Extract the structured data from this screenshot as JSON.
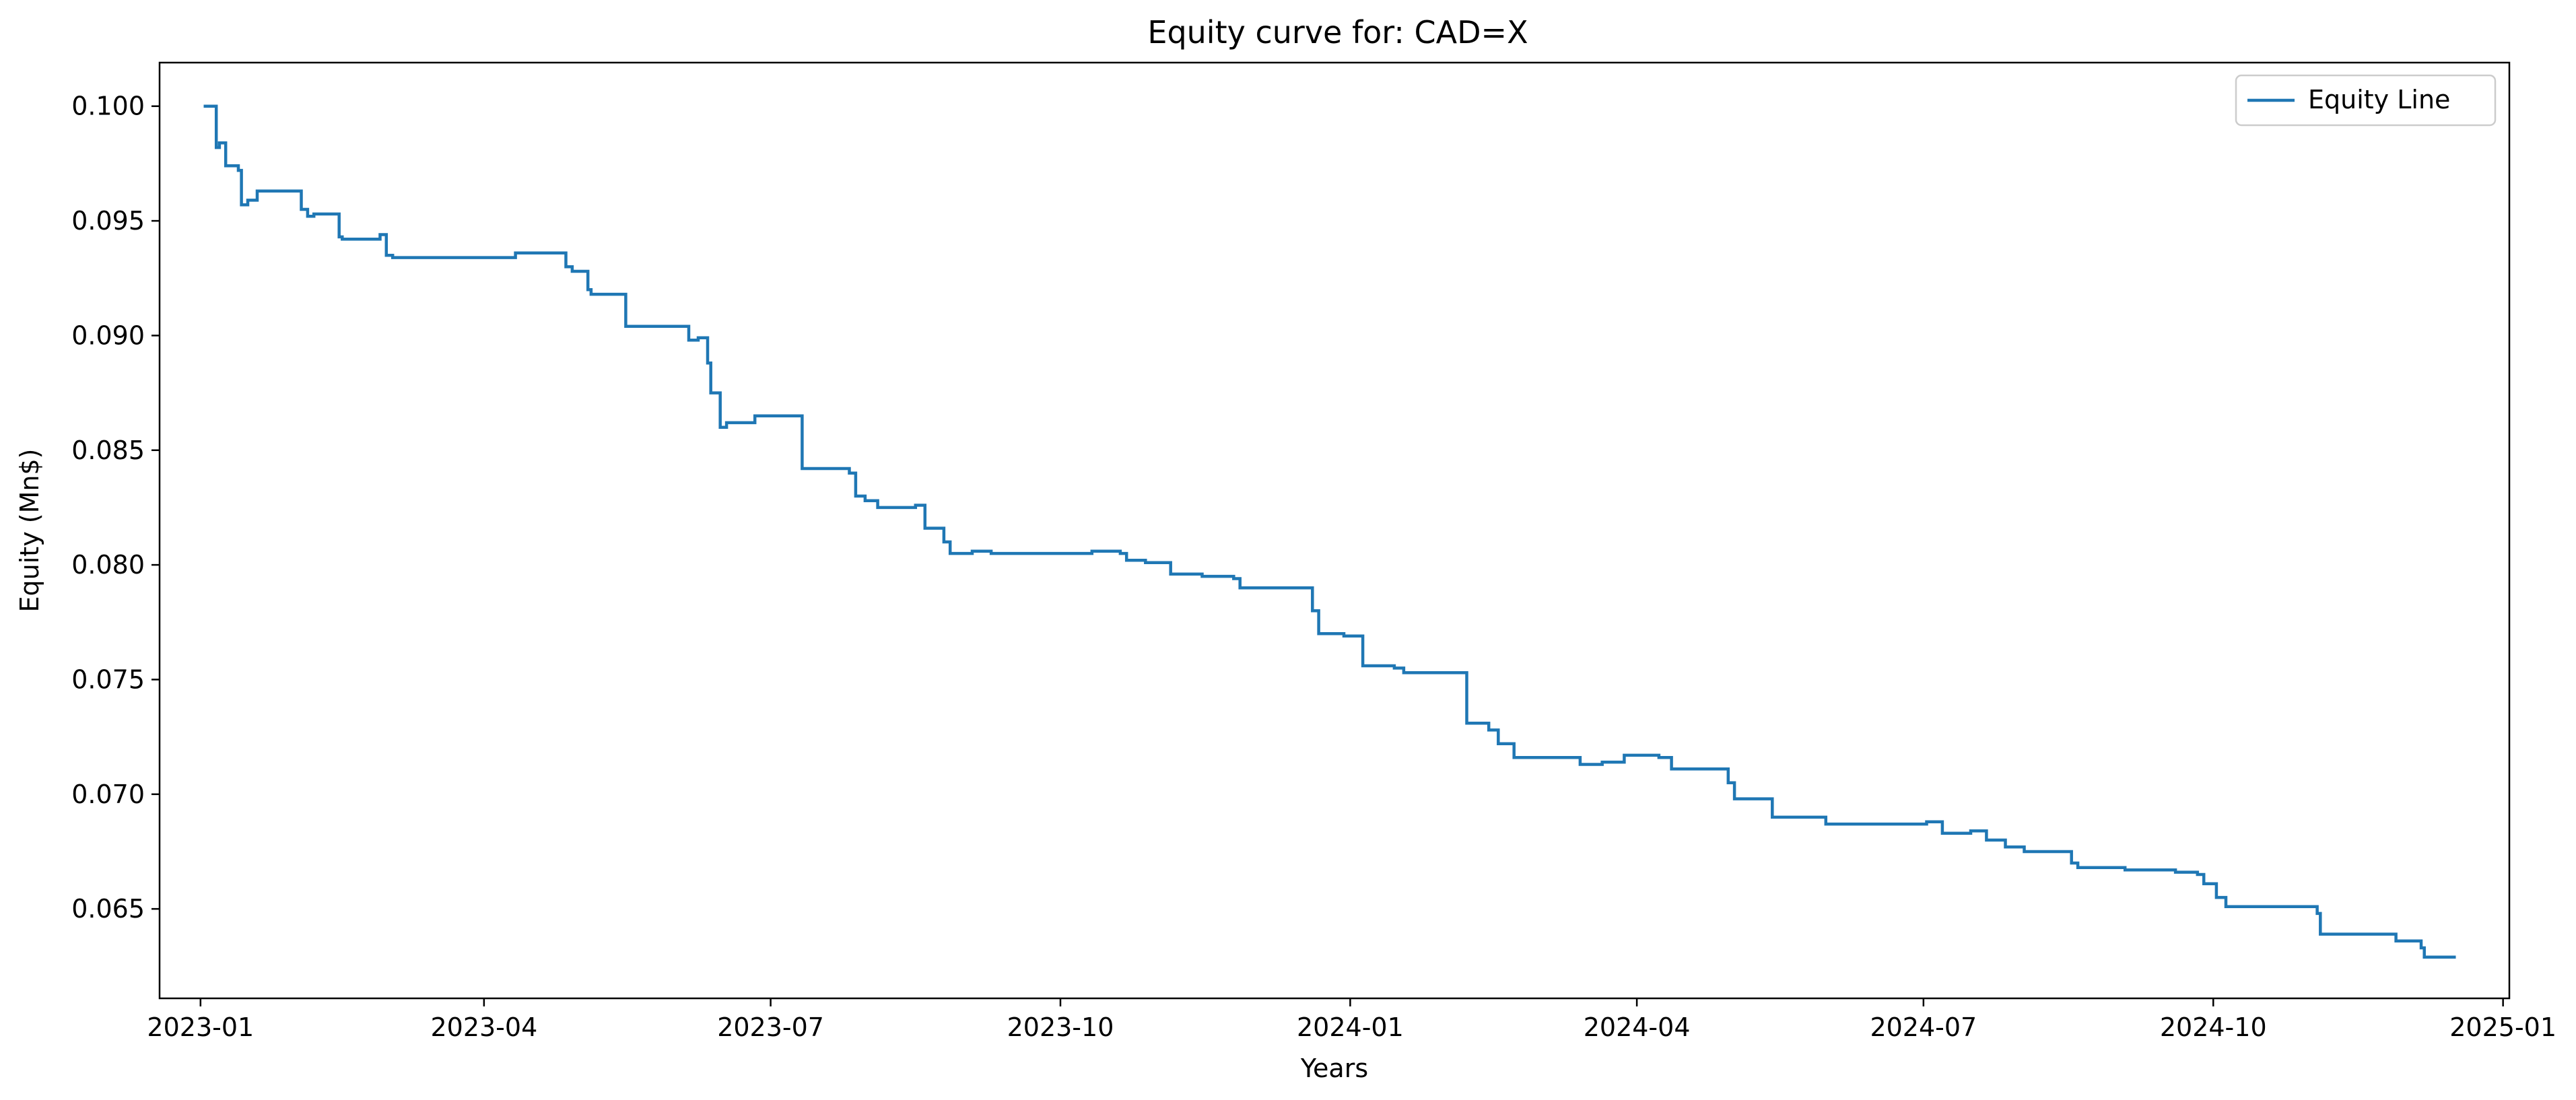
{
  "chart_data": {
    "type": "line",
    "title": "Equity curve for: CAD=X",
    "xlabel": "Years",
    "ylabel": "Equity (Mn$)",
    "x_axis_type": "date",
    "xlim": [
      "2022-12-19",
      "2025-01-03"
    ],
    "ylim": [
      0.0611,
      0.1019
    ],
    "x_ticks": [
      "2023-01",
      "2023-04",
      "2023-07",
      "2023-10",
      "2024-01",
      "2024-04",
      "2024-07",
      "2024-10",
      "2025-01"
    ],
    "y_ticks": [
      0.065,
      0.07,
      0.075,
      0.08,
      0.085,
      0.09,
      0.095,
      0.1
    ],
    "y_tick_labels": [
      "0.065",
      "0.070",
      "0.075",
      "0.080",
      "0.085",
      "0.090",
      "0.095",
      "0.100"
    ],
    "grid": false,
    "legend_position": "top-right",
    "colors": {
      "series": "#1f77b4",
      "axes": "#000000"
    },
    "series": [
      {
        "name": "Equity Line",
        "step": "post",
        "points": [
          [
            "2023-01-02",
            0.1
          ],
          [
            "2023-01-06",
            0.0982
          ],
          [
            "2023-01-07",
            0.0984
          ],
          [
            "2023-01-09",
            0.0974
          ],
          [
            "2023-01-13",
            0.0972
          ],
          [
            "2023-01-14",
            0.0957
          ],
          [
            "2023-01-16",
            0.0959
          ],
          [
            "2023-01-19",
            0.0963
          ],
          [
            "2023-02-02",
            0.0955
          ],
          [
            "2023-02-04",
            0.0952
          ],
          [
            "2023-02-06",
            0.0953
          ],
          [
            "2023-02-14",
            0.0943
          ],
          [
            "2023-02-15",
            0.0942
          ],
          [
            "2023-02-27",
            0.0944
          ],
          [
            "2023-03-01",
            0.0935
          ],
          [
            "2023-03-03",
            0.0934
          ],
          [
            "2023-04-11",
            0.0936
          ],
          [
            "2023-04-27",
            0.093
          ],
          [
            "2023-04-29",
            0.0928
          ],
          [
            "2023-05-04",
            0.092
          ],
          [
            "2023-05-05",
            0.0918
          ],
          [
            "2023-05-16",
            0.0904
          ],
          [
            "2023-06-05",
            0.0898
          ],
          [
            "2023-06-08",
            0.0899
          ],
          [
            "2023-06-11",
            0.0888
          ],
          [
            "2023-06-12",
            0.0875
          ],
          [
            "2023-06-15",
            0.086
          ],
          [
            "2023-06-17",
            0.0862
          ],
          [
            "2023-06-26",
            0.0865
          ],
          [
            "2023-07-11",
            0.0842
          ],
          [
            "2023-07-26",
            0.084
          ],
          [
            "2023-07-28",
            0.083
          ],
          [
            "2023-07-31",
            0.0828
          ],
          [
            "2023-08-04",
            0.0825
          ],
          [
            "2023-08-16",
            0.0826
          ],
          [
            "2023-08-19",
            0.0816
          ],
          [
            "2023-08-23",
            0.0816
          ],
          [
            "2023-08-25",
            0.081
          ],
          [
            "2023-08-27",
            0.0805
          ],
          [
            "2023-09-03",
            0.0806
          ],
          [
            "2023-09-09",
            0.0805
          ],
          [
            "2023-10-11",
            0.0806
          ],
          [
            "2023-10-20",
            0.0805
          ],
          [
            "2023-10-22",
            0.0802
          ],
          [
            "2023-10-28",
            0.0801
          ],
          [
            "2023-11-05",
            0.0796
          ],
          [
            "2023-11-15",
            0.0795
          ],
          [
            "2023-11-25",
            0.0794
          ],
          [
            "2023-11-27",
            0.079
          ],
          [
            "2023-12-19",
            0.079
          ],
          [
            "2023-12-20",
            0.078
          ],
          [
            "2023-12-22",
            0.077
          ],
          [
            "2023-12-30",
            0.0769
          ],
          [
            "2024-01-05",
            0.0756
          ],
          [
            "2024-01-15",
            0.0755
          ],
          [
            "2024-01-18",
            0.0753
          ],
          [
            "2024-02-07",
            0.0731
          ],
          [
            "2024-02-14",
            0.0728
          ],
          [
            "2024-02-17",
            0.0722
          ],
          [
            "2024-02-22",
            0.0716
          ],
          [
            "2024-02-26",
            0.0716
          ],
          [
            "2024-03-14",
            0.0713
          ],
          [
            "2024-03-21",
            0.0714
          ],
          [
            "2024-03-28",
            0.0717
          ],
          [
            "2024-04-08",
            0.0716
          ],
          [
            "2024-04-12",
            0.0711
          ],
          [
            "2024-04-22",
            0.0711
          ],
          [
            "2024-04-30",
            0.0705
          ],
          [
            "2024-05-02",
            0.0698
          ],
          [
            "2024-05-11",
            0.0698
          ],
          [
            "2024-05-14",
            0.069
          ],
          [
            "2024-05-27",
            0.069
          ],
          [
            "2024-05-31",
            0.0687
          ],
          [
            "2024-06-30",
            0.0687
          ],
          [
            "2024-07-02",
            0.0688
          ],
          [
            "2024-07-07",
            0.0683
          ],
          [
            "2024-07-16",
            0.0684
          ],
          [
            "2024-07-21",
            0.068
          ],
          [
            "2024-07-27",
            0.0677
          ],
          [
            "2024-08-02",
            0.0675
          ],
          [
            "2024-08-15",
            0.0675
          ],
          [
            "2024-08-17",
            0.067
          ],
          [
            "2024-08-19",
            0.0668
          ],
          [
            "2024-09-03",
            0.0667
          ],
          [
            "2024-09-13",
            0.0667
          ],
          [
            "2024-09-19",
            0.0666
          ],
          [
            "2024-09-26",
            0.0665
          ],
          [
            "2024-09-28",
            0.0661
          ],
          [
            "2024-10-02",
            0.0655
          ],
          [
            "2024-10-05",
            0.0651
          ],
          [
            "2024-11-02",
            0.0651
          ],
          [
            "2024-11-03",
            0.0648
          ],
          [
            "2024-11-04",
            0.0639
          ],
          [
            "2024-11-27",
            0.0639
          ],
          [
            "2024-11-28",
            0.0636
          ],
          [
            "2024-12-06",
            0.0633
          ],
          [
            "2024-12-07",
            0.0629
          ],
          [
            "2024-12-17",
            0.0629
          ]
        ]
      }
    ]
  }
}
